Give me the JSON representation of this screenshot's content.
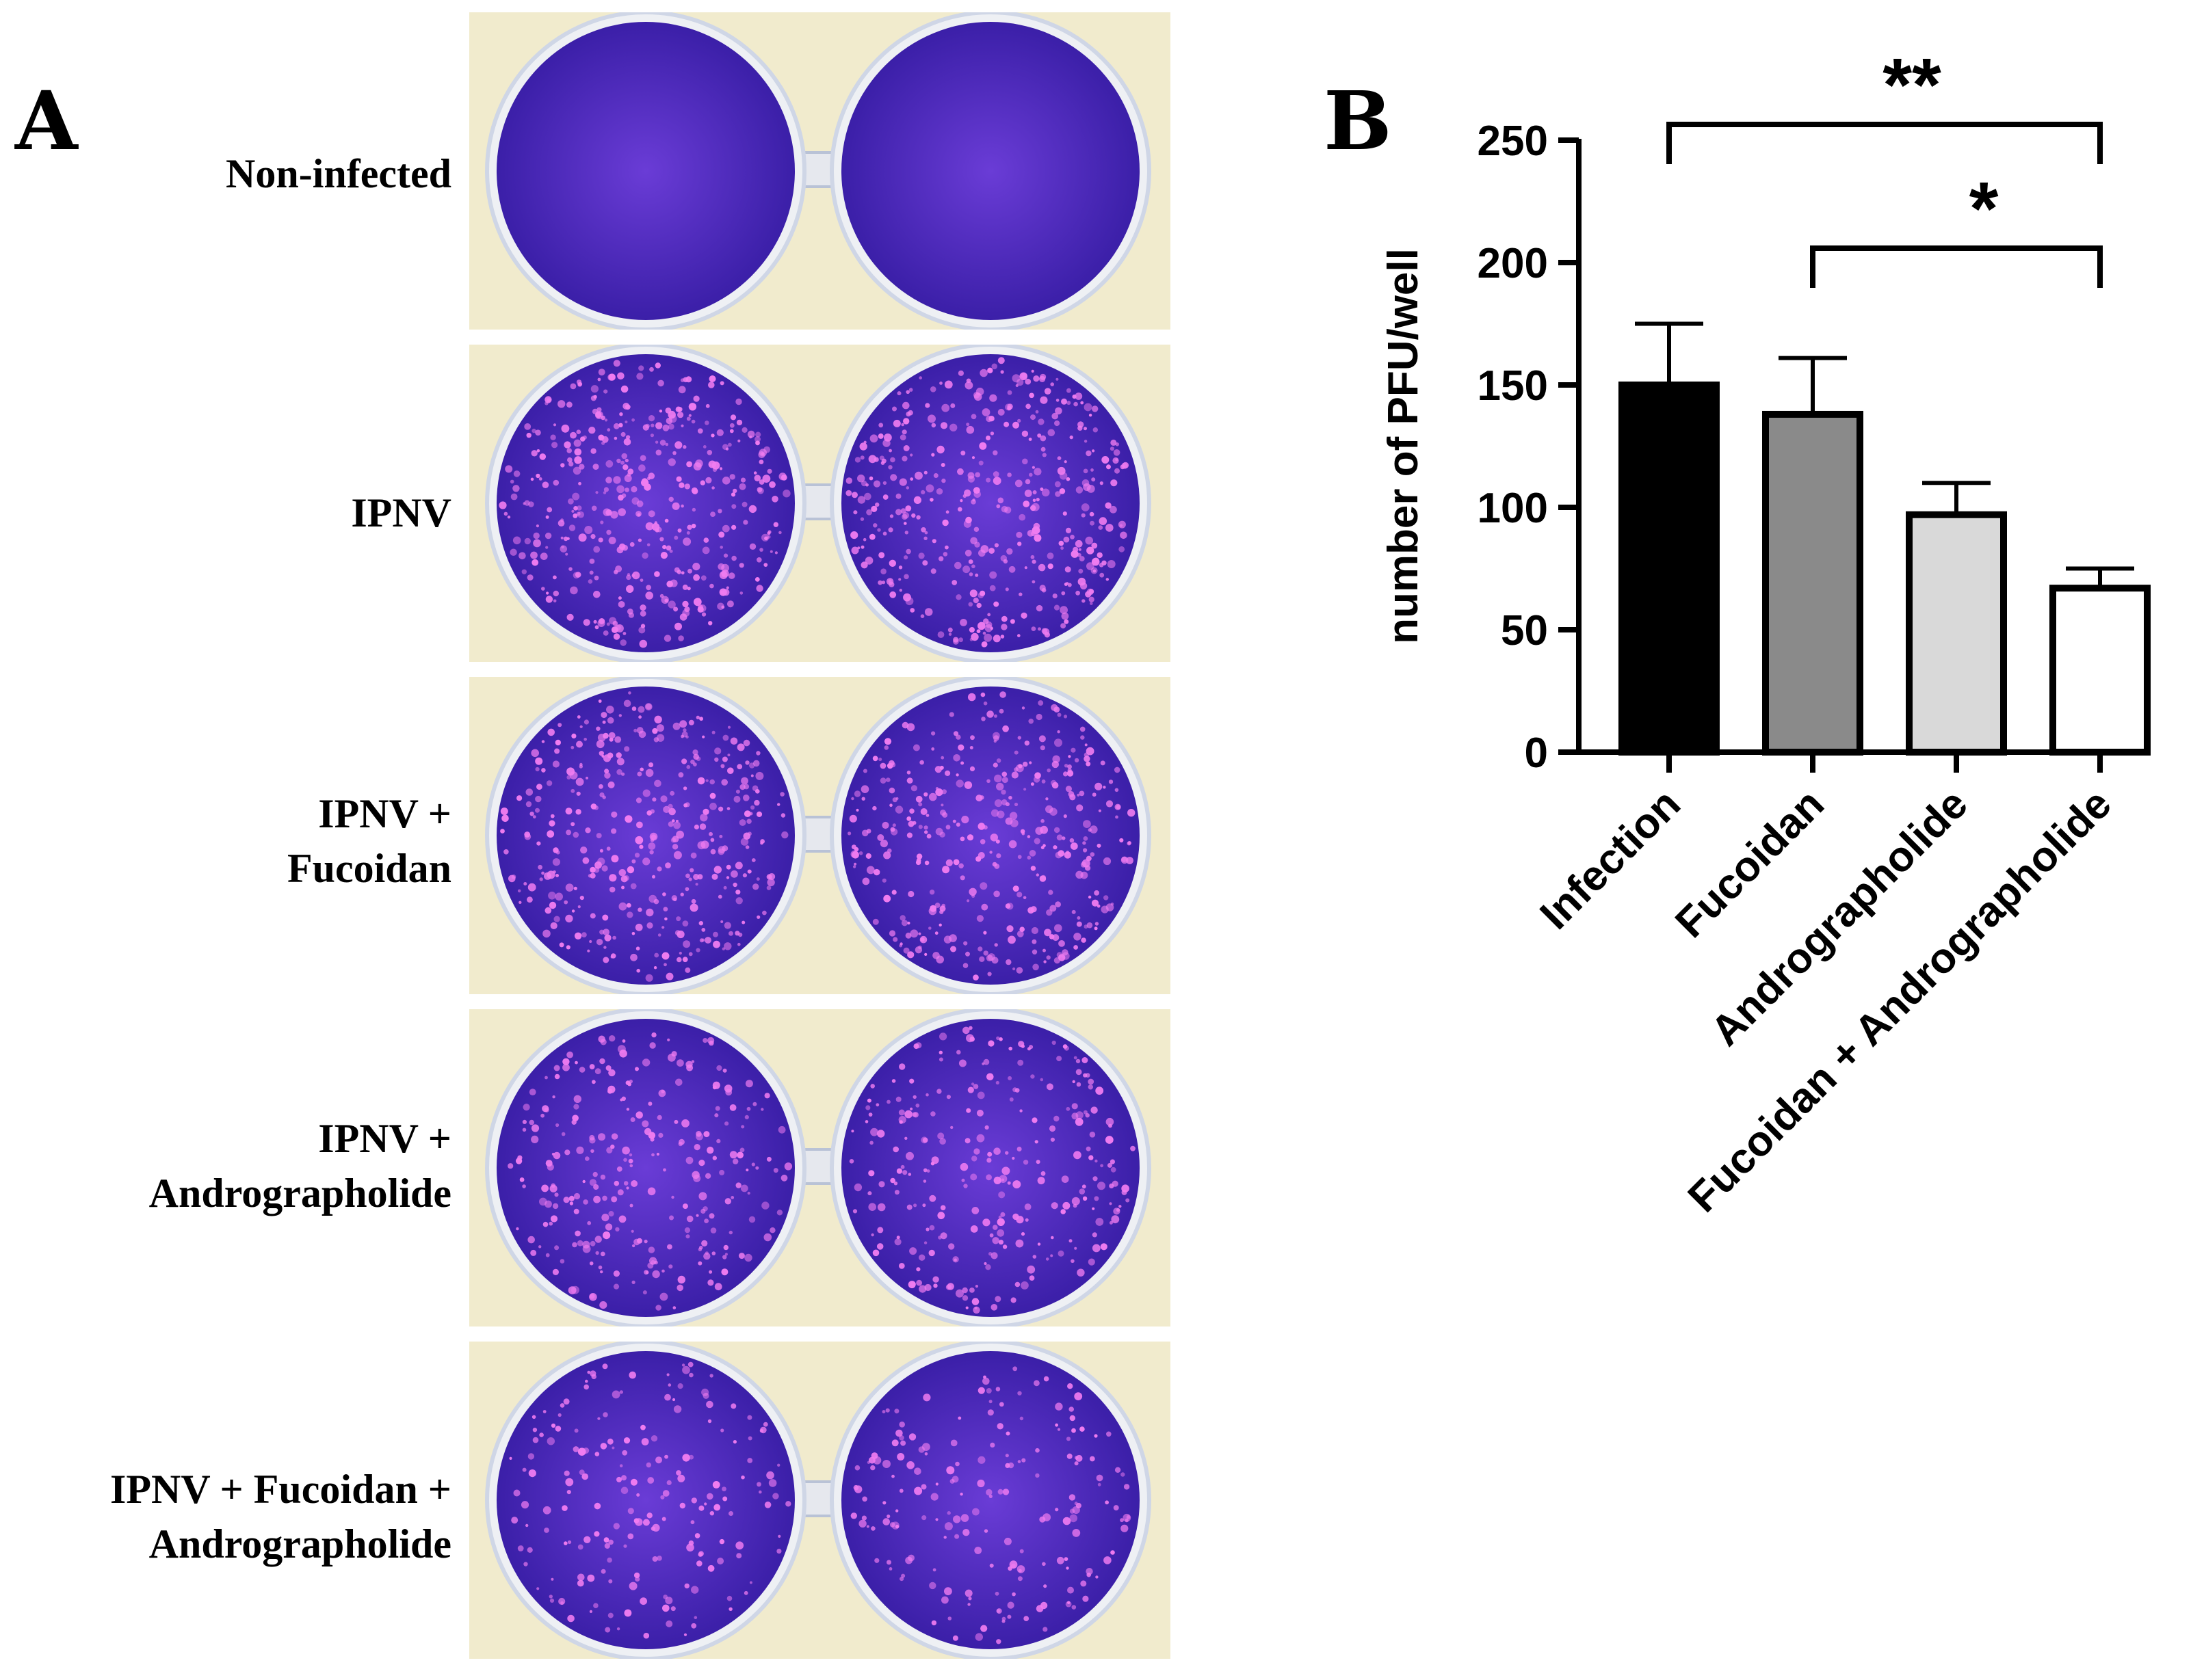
{
  "panels": {
    "a": {
      "letter": "A"
    },
    "b": {
      "letter": "B"
    }
  },
  "rows": [
    {
      "label_lines": [
        "Non-infected"
      ],
      "plaque_density": 0
    },
    {
      "label_lines": [
        "IPNV"
      ],
      "plaque_density": 1.0
    },
    {
      "label_lines": [
        "IPNV +",
        "Fucoidan"
      ],
      "plaque_density": 0.9
    },
    {
      "label_lines": [
        "IPNV +",
        "Andrographolide"
      ],
      "plaque_density": 0.65
    },
    {
      "label_lines": [
        "IPNV + Fucoidan +",
        "Andrographolide"
      ],
      "plaque_density": 0.45
    }
  ],
  "colors": {
    "stain": "#3b1fa8",
    "stain_light": "#6a3cd6",
    "plaque": "#f07cf0",
    "plate_bg": "#f1ebcd",
    "plate_rim": "#cfd6e6"
  },
  "chart_data": {
    "type": "bar",
    "categories": [
      "Infection",
      "Fucoidan",
      "Andrographolide",
      "Fucoidan + Andrographolide"
    ],
    "values": [
      150,
      138,
      97,
      67
    ],
    "errors": [
      25,
      23,
      13,
      8
    ],
    "bar_colors": [
      "#000000",
      "#8a8a8a",
      "#d9d9d9",
      "#ffffff"
    ],
    "ylabel": "number of PFU/well",
    "xlabel": "",
    "ylim": [
      0,
      250
    ],
    "yticks": [
      0,
      50,
      100,
      150,
      200,
      250
    ],
    "grid": false,
    "significance": [
      {
        "from": 0,
        "to": 3,
        "label": "**"
      },
      {
        "from": 1,
        "to": 3,
        "label": "*"
      }
    ]
  }
}
